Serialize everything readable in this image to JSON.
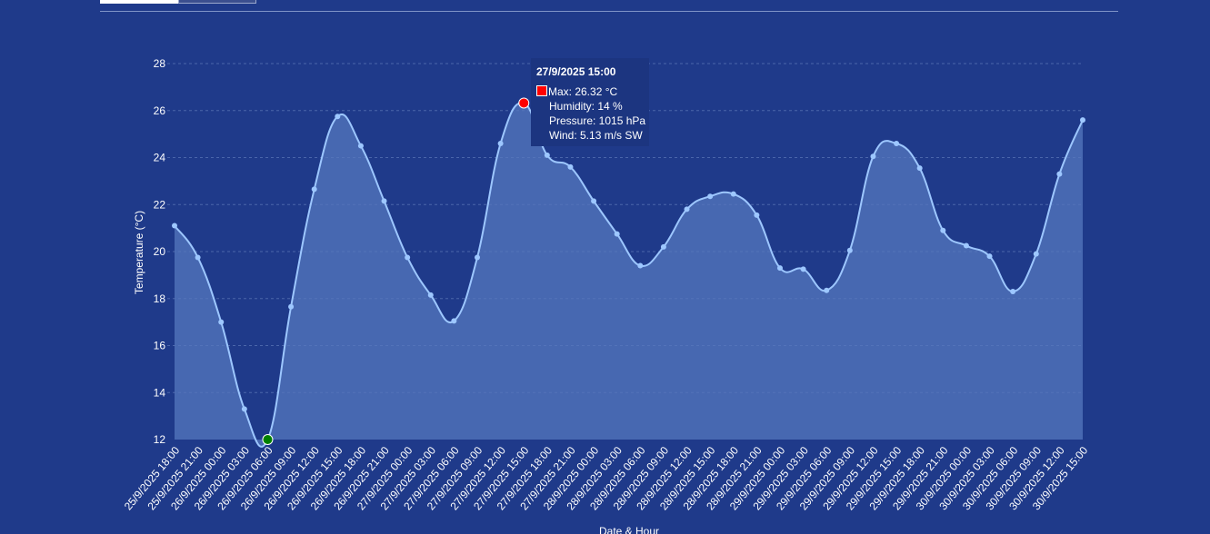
{
  "chart_data": {
    "type": "area",
    "ylabel": "Temperature (°C)",
    "xlabel": "Date & Hour",
    "ylim": [
      12,
      28
    ],
    "yticks": [
      12,
      14,
      16,
      18,
      20,
      22,
      24,
      26,
      28
    ],
    "grid": true,
    "categories": [
      "25/9/2025 18:00",
      "25/9/2025 21:00",
      "26/9/2025 00:00",
      "26/9/2025 03:00",
      "26/9/2025 06:00",
      "26/9/2025 09:00",
      "26/9/2025 12:00",
      "26/9/2025 15:00",
      "26/9/2025 18:00",
      "26/9/2025 21:00",
      "27/9/2025 00:00",
      "27/9/2025 03:00",
      "27/9/2025 06:00",
      "27/9/2025 09:00",
      "27/9/2025 12:00",
      "27/9/2025 15:00",
      "27/9/2025 18:00",
      "27/9/2025 21:00",
      "28/9/2025 00:00",
      "28/9/2025 03:00",
      "28/9/2025 06:00",
      "28/9/2025 09:00",
      "28/9/2025 12:00",
      "28/9/2025 15:00",
      "28/9/2025 18:00",
      "28/9/2025 21:00",
      "29/9/2025 00:00",
      "29/9/2025 03:00",
      "29/9/2025 06:00",
      "29/9/2025 09:00",
      "29/9/2025 12:00",
      "29/9/2025 15:00",
      "29/9/2025 18:00",
      "29/9/2025 21:00",
      "30/9/2025 00:00",
      "30/9/2025 03:00",
      "30/9/2025 06:00",
      "30/9/2025 09:00",
      "30/9/2025 12:00",
      "30/9/2025 15:00"
    ],
    "values": [
      21.1,
      19.75,
      17.0,
      13.3,
      12.0,
      17.65,
      22.65,
      25.75,
      24.5,
      22.15,
      19.75,
      18.15,
      17.05,
      19.75,
      24.6,
      26.32,
      24.1,
      23.6,
      22.15,
      20.75,
      19.4,
      20.2,
      21.8,
      22.35,
      22.45,
      21.55,
      19.3,
      19.25,
      18.35,
      20.05,
      24.05,
      24.6,
      23.55,
      20.9,
      20.25,
      19.8,
      18.3,
      19.9,
      23.3,
      25.6
    ],
    "max_index": 15,
    "min_index": 4,
    "colors": {
      "line": "#9dc7ff",
      "fill": "#5678bd",
      "point": "#9dc7ff",
      "max_point": "#ff0000",
      "min_point": "#008000"
    },
    "tooltip": {
      "title": "27/9/2025 15:00",
      "lines": [
        "Max: 26.32 °C",
        "Humidity: 14 %",
        "Pressure: 1015 hPa",
        "Wind: 5.13 m/s SW"
      ]
    }
  }
}
